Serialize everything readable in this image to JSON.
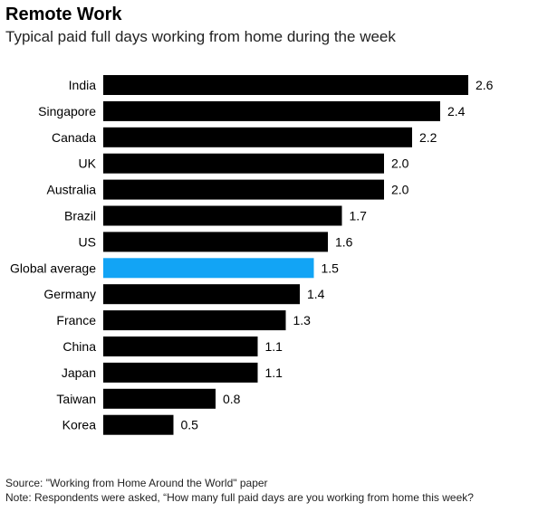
{
  "header": {
    "title": "Remote Work",
    "subtitle": "Typical paid full days working from home during the week"
  },
  "footer": {
    "source": "Source: \"Working from Home Around the World\" paper",
    "note": "Note: Respondents were asked, “How many full paid days are you working from home this week?"
  },
  "colors": {
    "bar": "#000000",
    "highlight": "#12a4f5",
    "text": "#000000"
  },
  "chart_data": {
    "type": "bar",
    "orientation": "horizontal",
    "categories": [
      "India",
      "Singapore",
      "Canada",
      "UK",
      "Australia",
      "Brazil",
      "US",
      "Global average",
      "Germany",
      "France",
      "China",
      "Japan",
      "Taiwan",
      "Korea"
    ],
    "values": [
      2.6,
      2.4,
      2.2,
      2.0,
      2.0,
      1.7,
      1.6,
      1.5,
      1.4,
      1.3,
      1.1,
      1.1,
      0.8,
      0.5
    ],
    "value_labels": [
      "2.6",
      "2.4",
      "2.2",
      "2.0",
      "2.0",
      "1.7",
      "1.6",
      "1.5",
      "1.4",
      "1.3",
      "1.1",
      "1.1",
      "0.8",
      "0.5"
    ],
    "highlight": [
      "Global average"
    ],
    "title": "Remote Work",
    "xlabel": "",
    "ylabel": "",
    "xlim": [
      0,
      2.6
    ],
    "grid": false,
    "legend": "none"
  }
}
